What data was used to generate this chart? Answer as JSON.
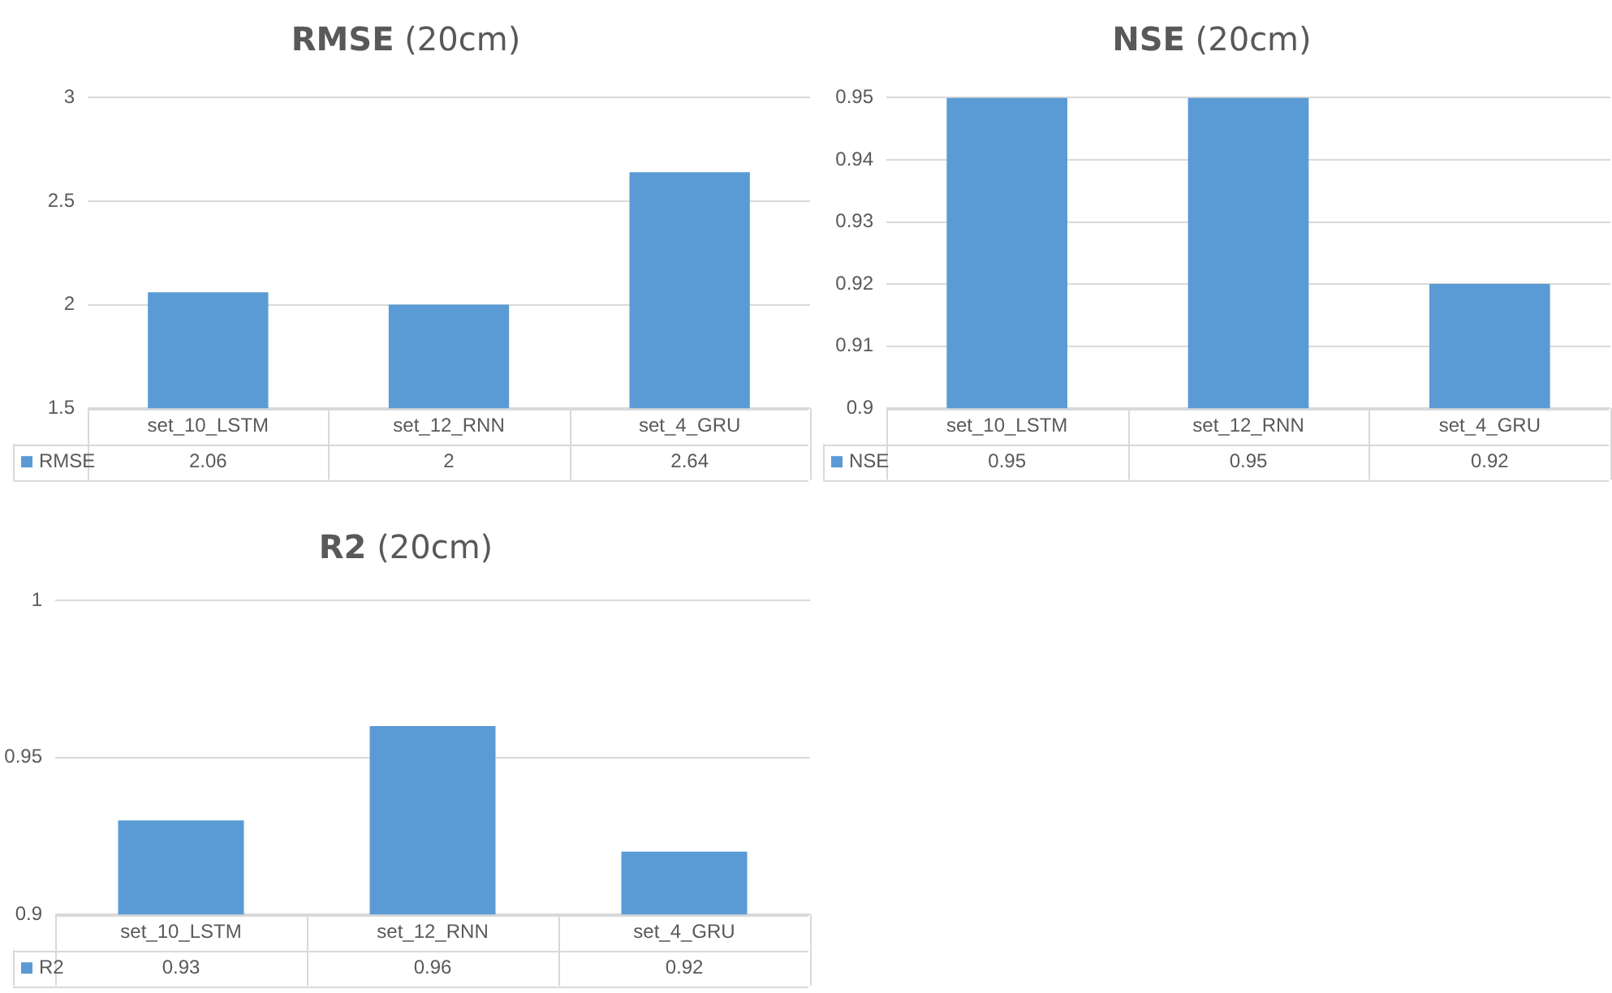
{
  "chart_data": [
    {
      "type": "bar",
      "title": "RMSE (20cm)",
      "categories": [
        "set_10_LSTM",
        "set_12_RNN",
        "set_4_GRU"
      ],
      "series": [
        {
          "name": "RMSE",
          "color": "#5b9bd5",
          "values": [
            2.06,
            2,
            2.64
          ]
        }
      ],
      "ylim": [
        1.5,
        3
      ],
      "yticks": [
        1.5,
        2,
        2.5,
        3
      ],
      "grid": "y",
      "legend": "bottom",
      "data_labels": true
    },
    {
      "type": "bar",
      "title": "NSE (20cm)",
      "categories": [
        "set_10_LSTM",
        "set_12_RNN",
        "set_4_GRU"
      ],
      "series": [
        {
          "name": "NSE",
          "color": "#5b9bd5",
          "values": [
            0.95,
            0.95,
            0.92
          ]
        }
      ],
      "ylim": [
        0.9,
        0.95
      ],
      "yticks": [
        0.9,
        0.91,
        0.92,
        0.93,
        0.94,
        0.95
      ],
      "grid": "y",
      "legend": "bottom",
      "data_labels": true
    },
    {
      "type": "bar",
      "title": "R2 (20cm)",
      "categories": [
        "set_10_LSTM",
        "set_12_RNN",
        "set_4_GRU"
      ],
      "series": [
        {
          "name": "R2",
          "color": "#5b9bd5",
          "values": [
            0.93,
            0.96,
            0.92
          ]
        }
      ],
      "ylim": [
        0.9,
        1
      ],
      "yticks": [
        0.9,
        0.95,
        1
      ],
      "grid": "y",
      "legend": "bottom",
      "data_labels": true
    }
  ]
}
